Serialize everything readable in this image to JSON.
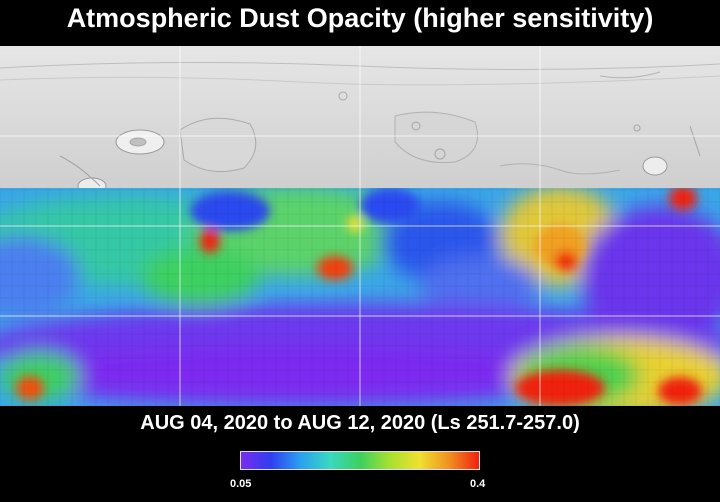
{
  "title": "Atmospheric Dust Opacity (higher sensitivity)",
  "date_range": "AUG 04, 2020 to AUG 12, 2020 (Ls 251.7-257.0)",
  "colorbar": {
    "min_label": "0.05",
    "max_label": "0.4",
    "colors": [
      "#7b2cf0",
      "#2f3ef0",
      "#2aa0f0",
      "#3ad8c0",
      "#3cd060",
      "#a8e030",
      "#f0e030",
      "#f09020",
      "#f02010"
    ]
  }
}
